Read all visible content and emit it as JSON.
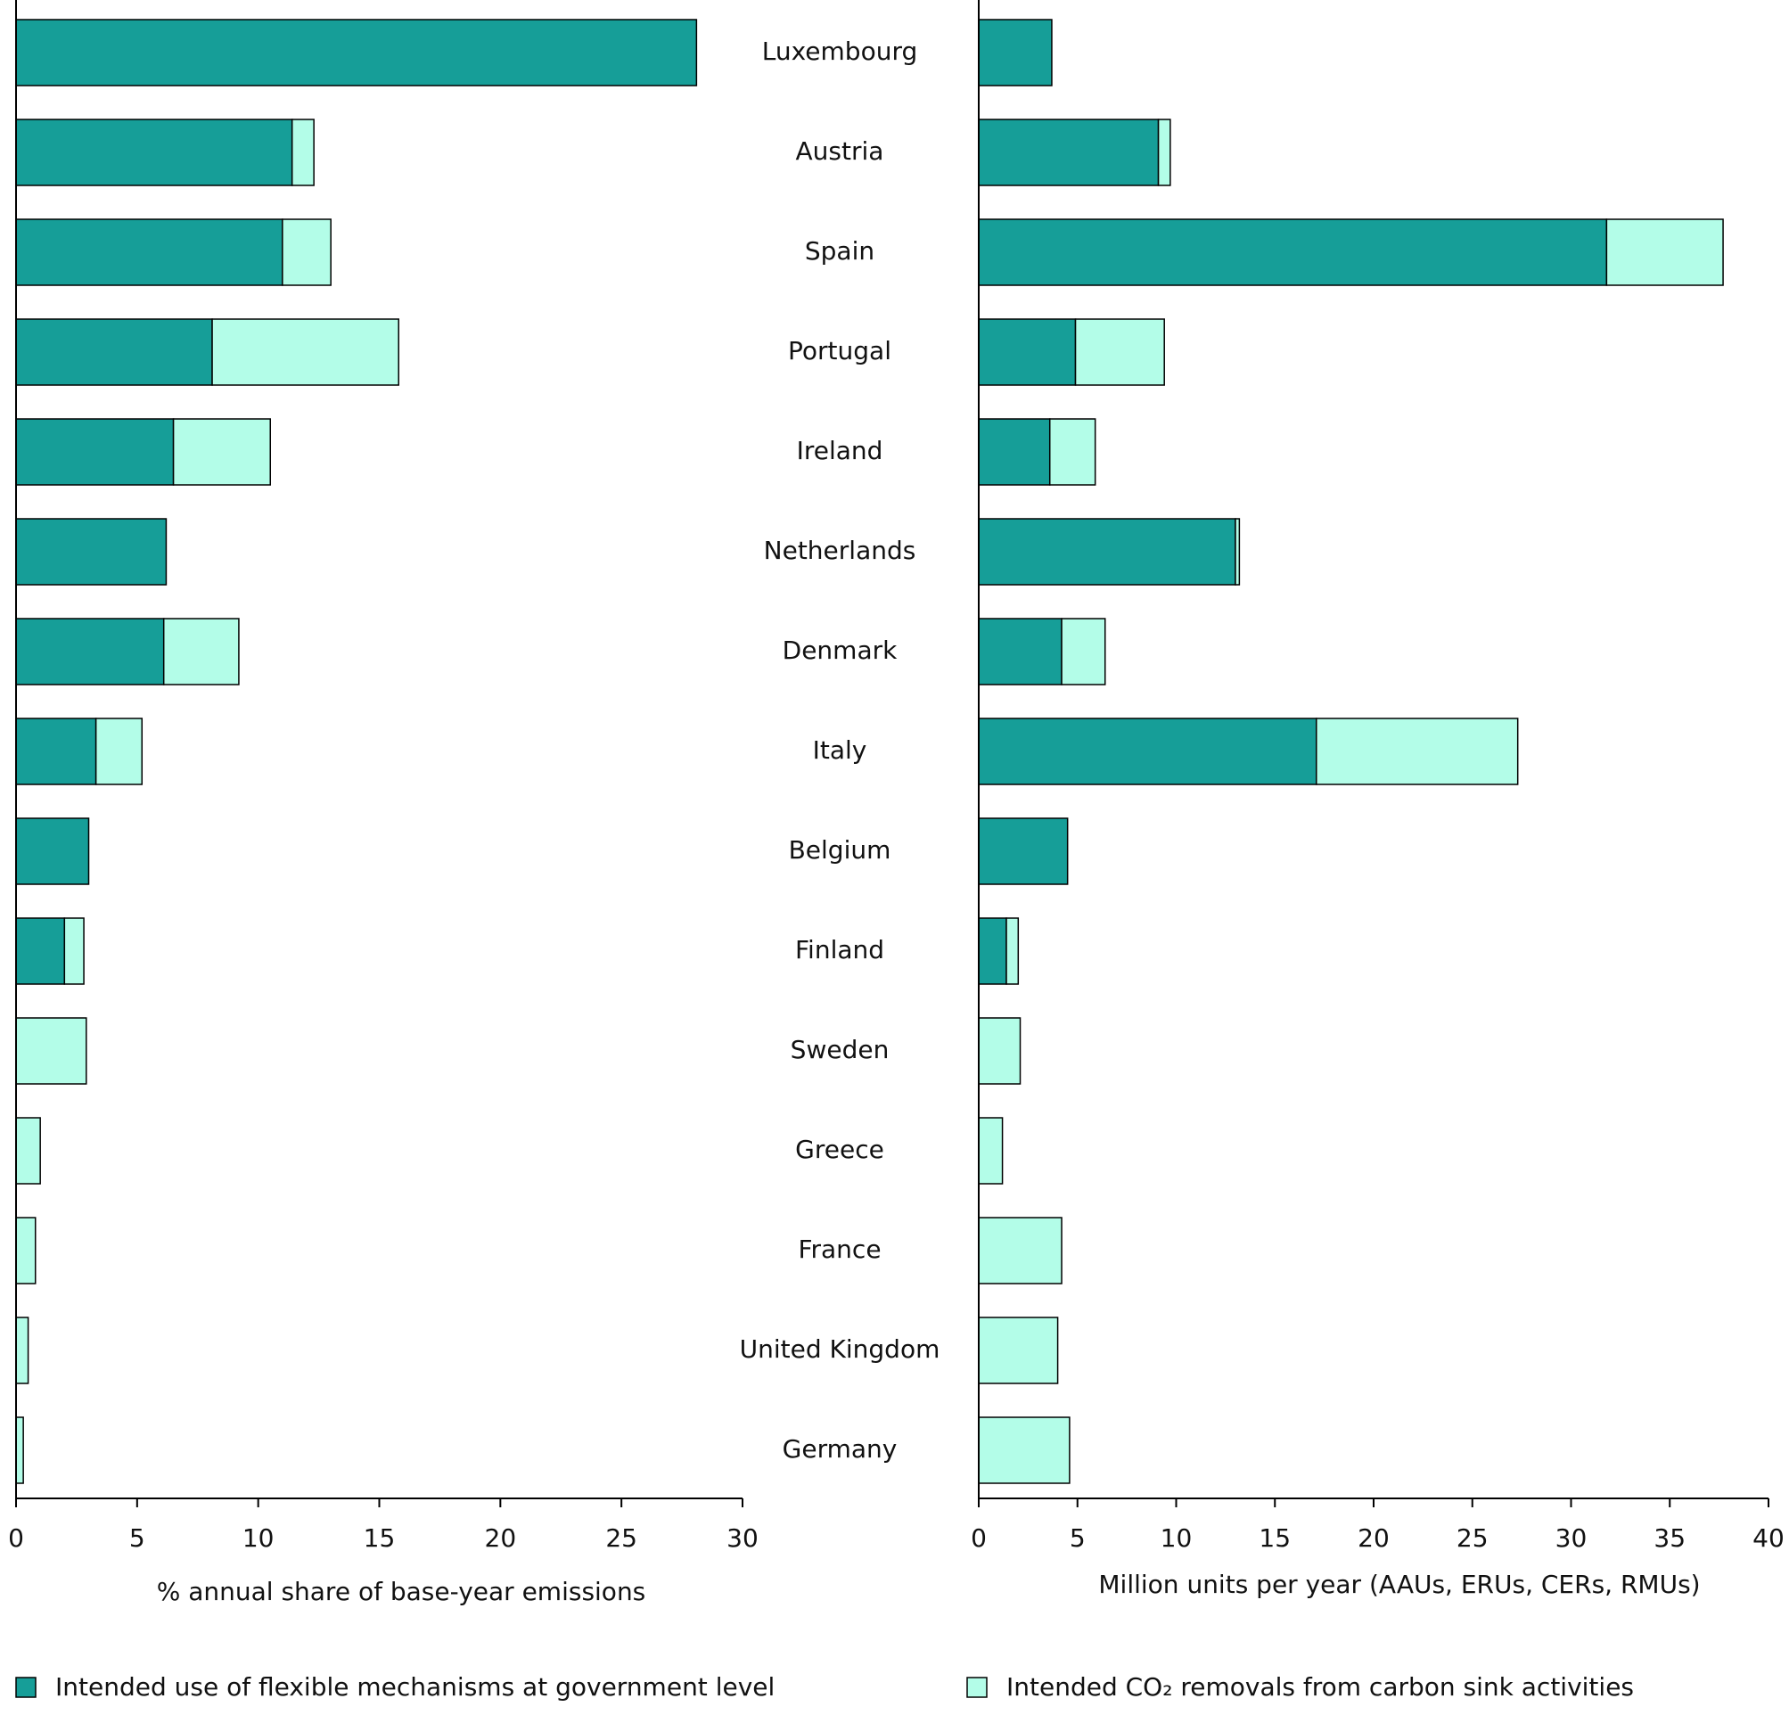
{
  "chart_data": [
    {
      "type": "stacked-bar-horizontal",
      "x_label": "% annual share of base-year emissions",
      "categories": [
        "Luxembourg",
        "Austria",
        "Spain",
        "Portugal",
        "Ireland",
        "Netherlands",
        "Denmark",
        "Italy",
        "Belgium",
        "Finland",
        "Sweden",
        "Greece",
        "France",
        "United Kingdom",
        "Germany"
      ],
      "series": [
        {
          "name": "Intended use of flexible mechanisms at government level",
          "color": "#169e98",
          "values": [
            28.1,
            11.4,
            11.0,
            8.1,
            6.5,
            6.2,
            6.1,
            3.3,
            3.0,
            2.0,
            0,
            0,
            0,
            0,
            0
          ]
        },
        {
          "name": "Intended CO₂ removals from carbon sink activities",
          "color": "#b3fde8",
          "values": [
            0,
            0.9,
            2.0,
            7.7,
            4.0,
            0,
            3.1,
            1.9,
            0,
            0.8,
            2.9,
            1.0,
            0.8,
            0.5,
            0.3
          ]
        }
      ],
      "xlim": [
        0,
        30
      ],
      "xticks": [
        0,
        5,
        10,
        15,
        20,
        25,
        30
      ]
    },
    {
      "type": "stacked-bar-horizontal",
      "x_label": "Million units per year (AAUs, ERUs, CERs, RMUs)",
      "series": [
        {
          "color": "#169e98",
          "values": [
            3.7,
            9.1,
            31.8,
            4.9,
            3.6,
            13.0,
            4.2,
            17.1,
            4.5,
            1.4,
            0,
            0,
            0,
            0,
            0
          ]
        },
        {
          "color": "#b3fde8",
          "values": [
            0,
            0.6,
            5.9,
            4.5,
            2.3,
            0.2,
            2.2,
            10.2,
            0,
            0.6,
            2.1,
            1.2,
            4.2,
            4.0,
            4.6
          ]
        }
      ],
      "xlim": [
        0,
        40
      ],
      "xticks": [
        0,
        5,
        10,
        15,
        20,
        25,
        30,
        35,
        40
      ]
    }
  ]
}
